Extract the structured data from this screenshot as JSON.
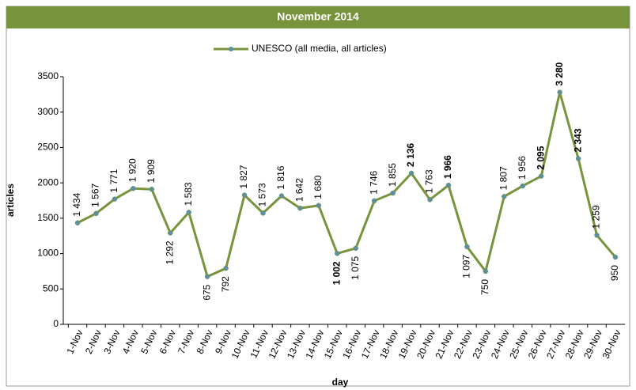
{
  "chart_data": {
    "type": "line",
    "title": "November 2014",
    "xlabel": "day",
    "ylabel": "articles",
    "categories": [
      "1-Nov",
      "2-Nov",
      "3-Nov",
      "4-Nov",
      "5-Nov",
      "6-Nov",
      "7-Nov",
      "8-Nov",
      "9-Nov",
      "10-Nov",
      "11-Nov",
      "12-Nov",
      "13-Nov",
      "14-Nov",
      "15-Nov",
      "16-Nov",
      "17-Nov",
      "18-Nov",
      "19-Nov",
      "20-Nov",
      "21-Nov",
      "22-Nov",
      "23-Nov",
      "24-Nov",
      "25-Nov",
      "26-Nov",
      "27-Nov",
      "28-Nov",
      "29-Nov",
      "30-Nov"
    ],
    "series": [
      {
        "name": "UNESCO (all media, all articles)",
        "color": "#77933c",
        "marker_color": "#5b8fa3",
        "values": [
          1434,
          1567,
          1771,
          1920,
          1909,
          1292,
          1583,
          675,
          792,
          1827,
          1573,
          1816,
          1642,
          1680,
          1002,
          1075,
          1746,
          1855,
          2136,
          1763,
          1966,
          1097,
          750,
          1807,
          1956,
          2095,
          3280,
          2343,
          1259,
          950
        ],
        "value_labels": [
          "1 434",
          "1 567",
          "1 771",
          "1 920",
          "1 909",
          "1 292",
          "1 583",
          "675",
          "792",
          "1 827",
          "1 573",
          "1 816",
          "1 642",
          "1 680",
          "1 002",
          "1 075",
          "1 746",
          "1 855",
          "2 136",
          "1 763",
          "1 966",
          "1 097",
          "750",
          "1 807",
          "1 956",
          "2 095",
          "3 280",
          "2 343",
          "1 259",
          "950"
        ],
        "value_label_position": [
          "above",
          "above",
          "above",
          "above",
          "above",
          "below",
          "above",
          "below",
          "below",
          "above",
          "above",
          "above",
          "above",
          "above",
          "below",
          "below",
          "above",
          "above",
          "above",
          "above",
          "above",
          "below",
          "below",
          "above",
          "above",
          "above",
          "above",
          "above",
          "above",
          "below"
        ],
        "value_label_bold": [
          false,
          false,
          false,
          false,
          false,
          false,
          false,
          false,
          false,
          false,
          false,
          false,
          false,
          false,
          true,
          false,
          false,
          false,
          true,
          false,
          true,
          false,
          false,
          false,
          false,
          true,
          true,
          true,
          false,
          false
        ]
      }
    ],
    "ylim": [
      0,
      3500
    ],
    "yticks": [
      0,
      500,
      1000,
      1500,
      2000,
      2500,
      3000,
      3500
    ],
    "legend": "top",
    "header_color": "#77933c"
  }
}
